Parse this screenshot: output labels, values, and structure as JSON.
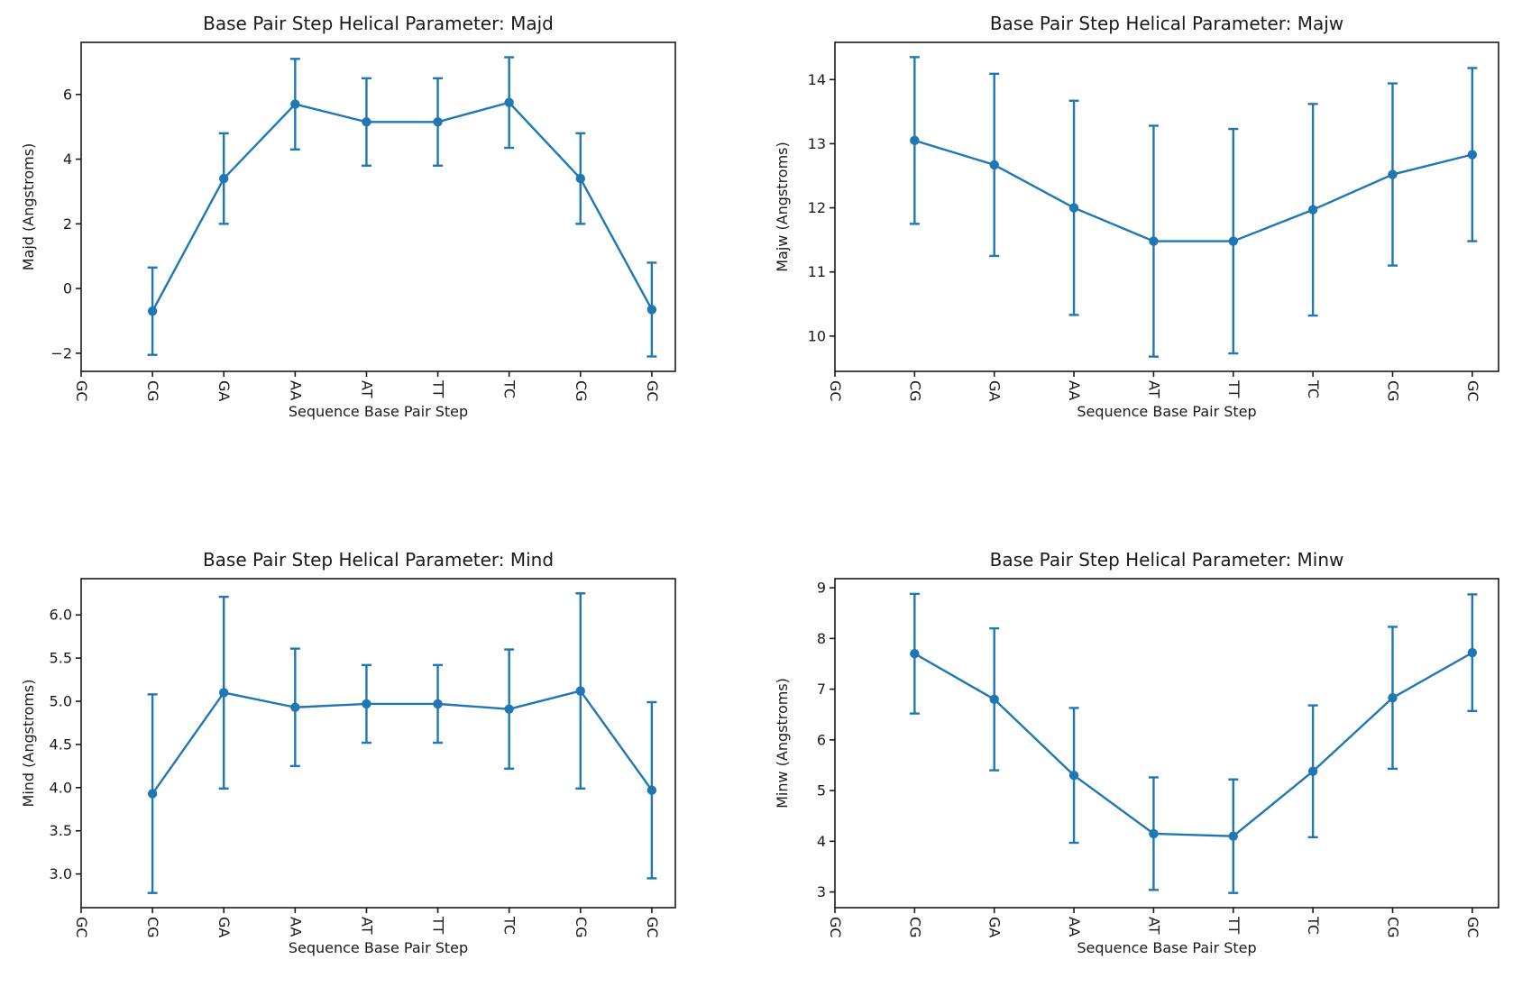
{
  "colors": {
    "line": "#1f77b4",
    "text": "#1a1a1a",
    "background": "#ffffff"
  },
  "chart_data": [
    {
      "type": "line",
      "title": "Base Pair Step Helical Parameter: Majd",
      "xlabel": "Sequence Base Pair Step",
      "ylabel": "Majd (Angstroms)",
      "categories": [
        "GC",
        "CG",
        "GA",
        "AA",
        "AT",
        "TT",
        "TC",
        "CG",
        "GC"
      ],
      "series": [
        {
          "name": "Majd",
          "values": [
            null,
            -0.7,
            3.4,
            5.7,
            5.15,
            5.15,
            5.75,
            3.4,
            -0.65
          ],
          "errors": [
            null,
            1.35,
            1.4,
            1.4,
            1.35,
            1.35,
            1.4,
            1.4,
            1.45
          ]
        }
      ],
      "error_bars": true,
      "marker": "circle",
      "grid": false,
      "legend": "none",
      "ylim": [
        -2.56,
        7.61
      ],
      "xlim": [
        0,
        8.33
      ],
      "yticks": [
        -2,
        0,
        2,
        4,
        6
      ],
      "ytick_labels": [
        "−2",
        "0",
        "2",
        "4",
        "6"
      ]
    },
    {
      "type": "line",
      "title": "Base Pair Step Helical Parameter: Majw",
      "xlabel": "Sequence Base Pair Step",
      "ylabel": "Majw (Angstroms)",
      "categories": [
        "GC",
        "CG",
        "GA",
        "AA",
        "AT",
        "TT",
        "TC",
        "CG",
        "GC"
      ],
      "series": [
        {
          "name": "Majw",
          "values": [
            null,
            13.05,
            12.67,
            12.0,
            11.48,
            11.48,
            11.97,
            12.52,
            12.83
          ],
          "errors": [
            null,
            1.3,
            1.42,
            1.67,
            1.8,
            1.75,
            1.65,
            1.42,
            1.35
          ]
        }
      ],
      "error_bars": true,
      "marker": "circle",
      "grid": false,
      "legend": "none",
      "ylim": [
        9.45,
        14.58
      ],
      "xlim": [
        0,
        8.33
      ],
      "yticks": [
        10,
        11,
        12,
        13,
        14
      ],
      "ytick_labels": [
        "10",
        "11",
        "12",
        "13",
        "14"
      ]
    },
    {
      "type": "line",
      "title": "Base Pair Step Helical Parameter: Mind",
      "xlabel": "Sequence Base Pair Step",
      "ylabel": "Mind (Angstroms)",
      "categories": [
        "GC",
        "CG",
        "GA",
        "AA",
        "AT",
        "TT",
        "TC",
        "CG",
        "GC"
      ],
      "series": [
        {
          "name": "Mind",
          "values": [
            null,
            3.93,
            5.1,
            4.93,
            4.97,
            4.97,
            4.91,
            5.12,
            3.97
          ],
          "errors": [
            null,
            1.15,
            1.11,
            0.68,
            0.45,
            0.45,
            0.69,
            1.13,
            1.02
          ]
        }
      ],
      "error_bars": true,
      "marker": "circle",
      "grid": false,
      "legend": "none",
      "ylim": [
        2.61,
        6.42
      ],
      "xlim": [
        0,
        8.33
      ],
      "yticks": [
        3,
        3.5,
        4,
        4.5,
        5,
        5.5,
        6
      ],
      "ytick_labels": [
        "3.0",
        "3.5",
        "4.0",
        "4.5",
        "5.0",
        "5.5",
        "6.0"
      ]
    },
    {
      "type": "line",
      "title": "Base Pair Step Helical Parameter: Minw",
      "xlabel": "Sequence Base Pair Step",
      "ylabel": "Minw (Angstroms)",
      "categories": [
        "GC",
        "CG",
        "GA",
        "AA",
        "AT",
        "TT",
        "TC",
        "CG",
        "GC"
      ],
      "series": [
        {
          "name": "Minw",
          "values": [
            null,
            7.7,
            6.8,
            5.3,
            4.15,
            4.1,
            5.38,
            6.83,
            7.72
          ],
          "errors": [
            null,
            1.18,
            1.4,
            1.33,
            1.11,
            1.12,
            1.3,
            1.4,
            1.15
          ]
        }
      ],
      "error_bars": true,
      "marker": "circle",
      "grid": false,
      "legend": "none",
      "ylim": [
        2.69,
        9.18
      ],
      "xlim": [
        0,
        8.33
      ],
      "yticks": [
        3,
        4,
        5,
        6,
        7,
        8,
        9
      ],
      "ytick_labels": [
        "3",
        "4",
        "5",
        "6",
        "7",
        "8",
        "9"
      ]
    }
  ]
}
